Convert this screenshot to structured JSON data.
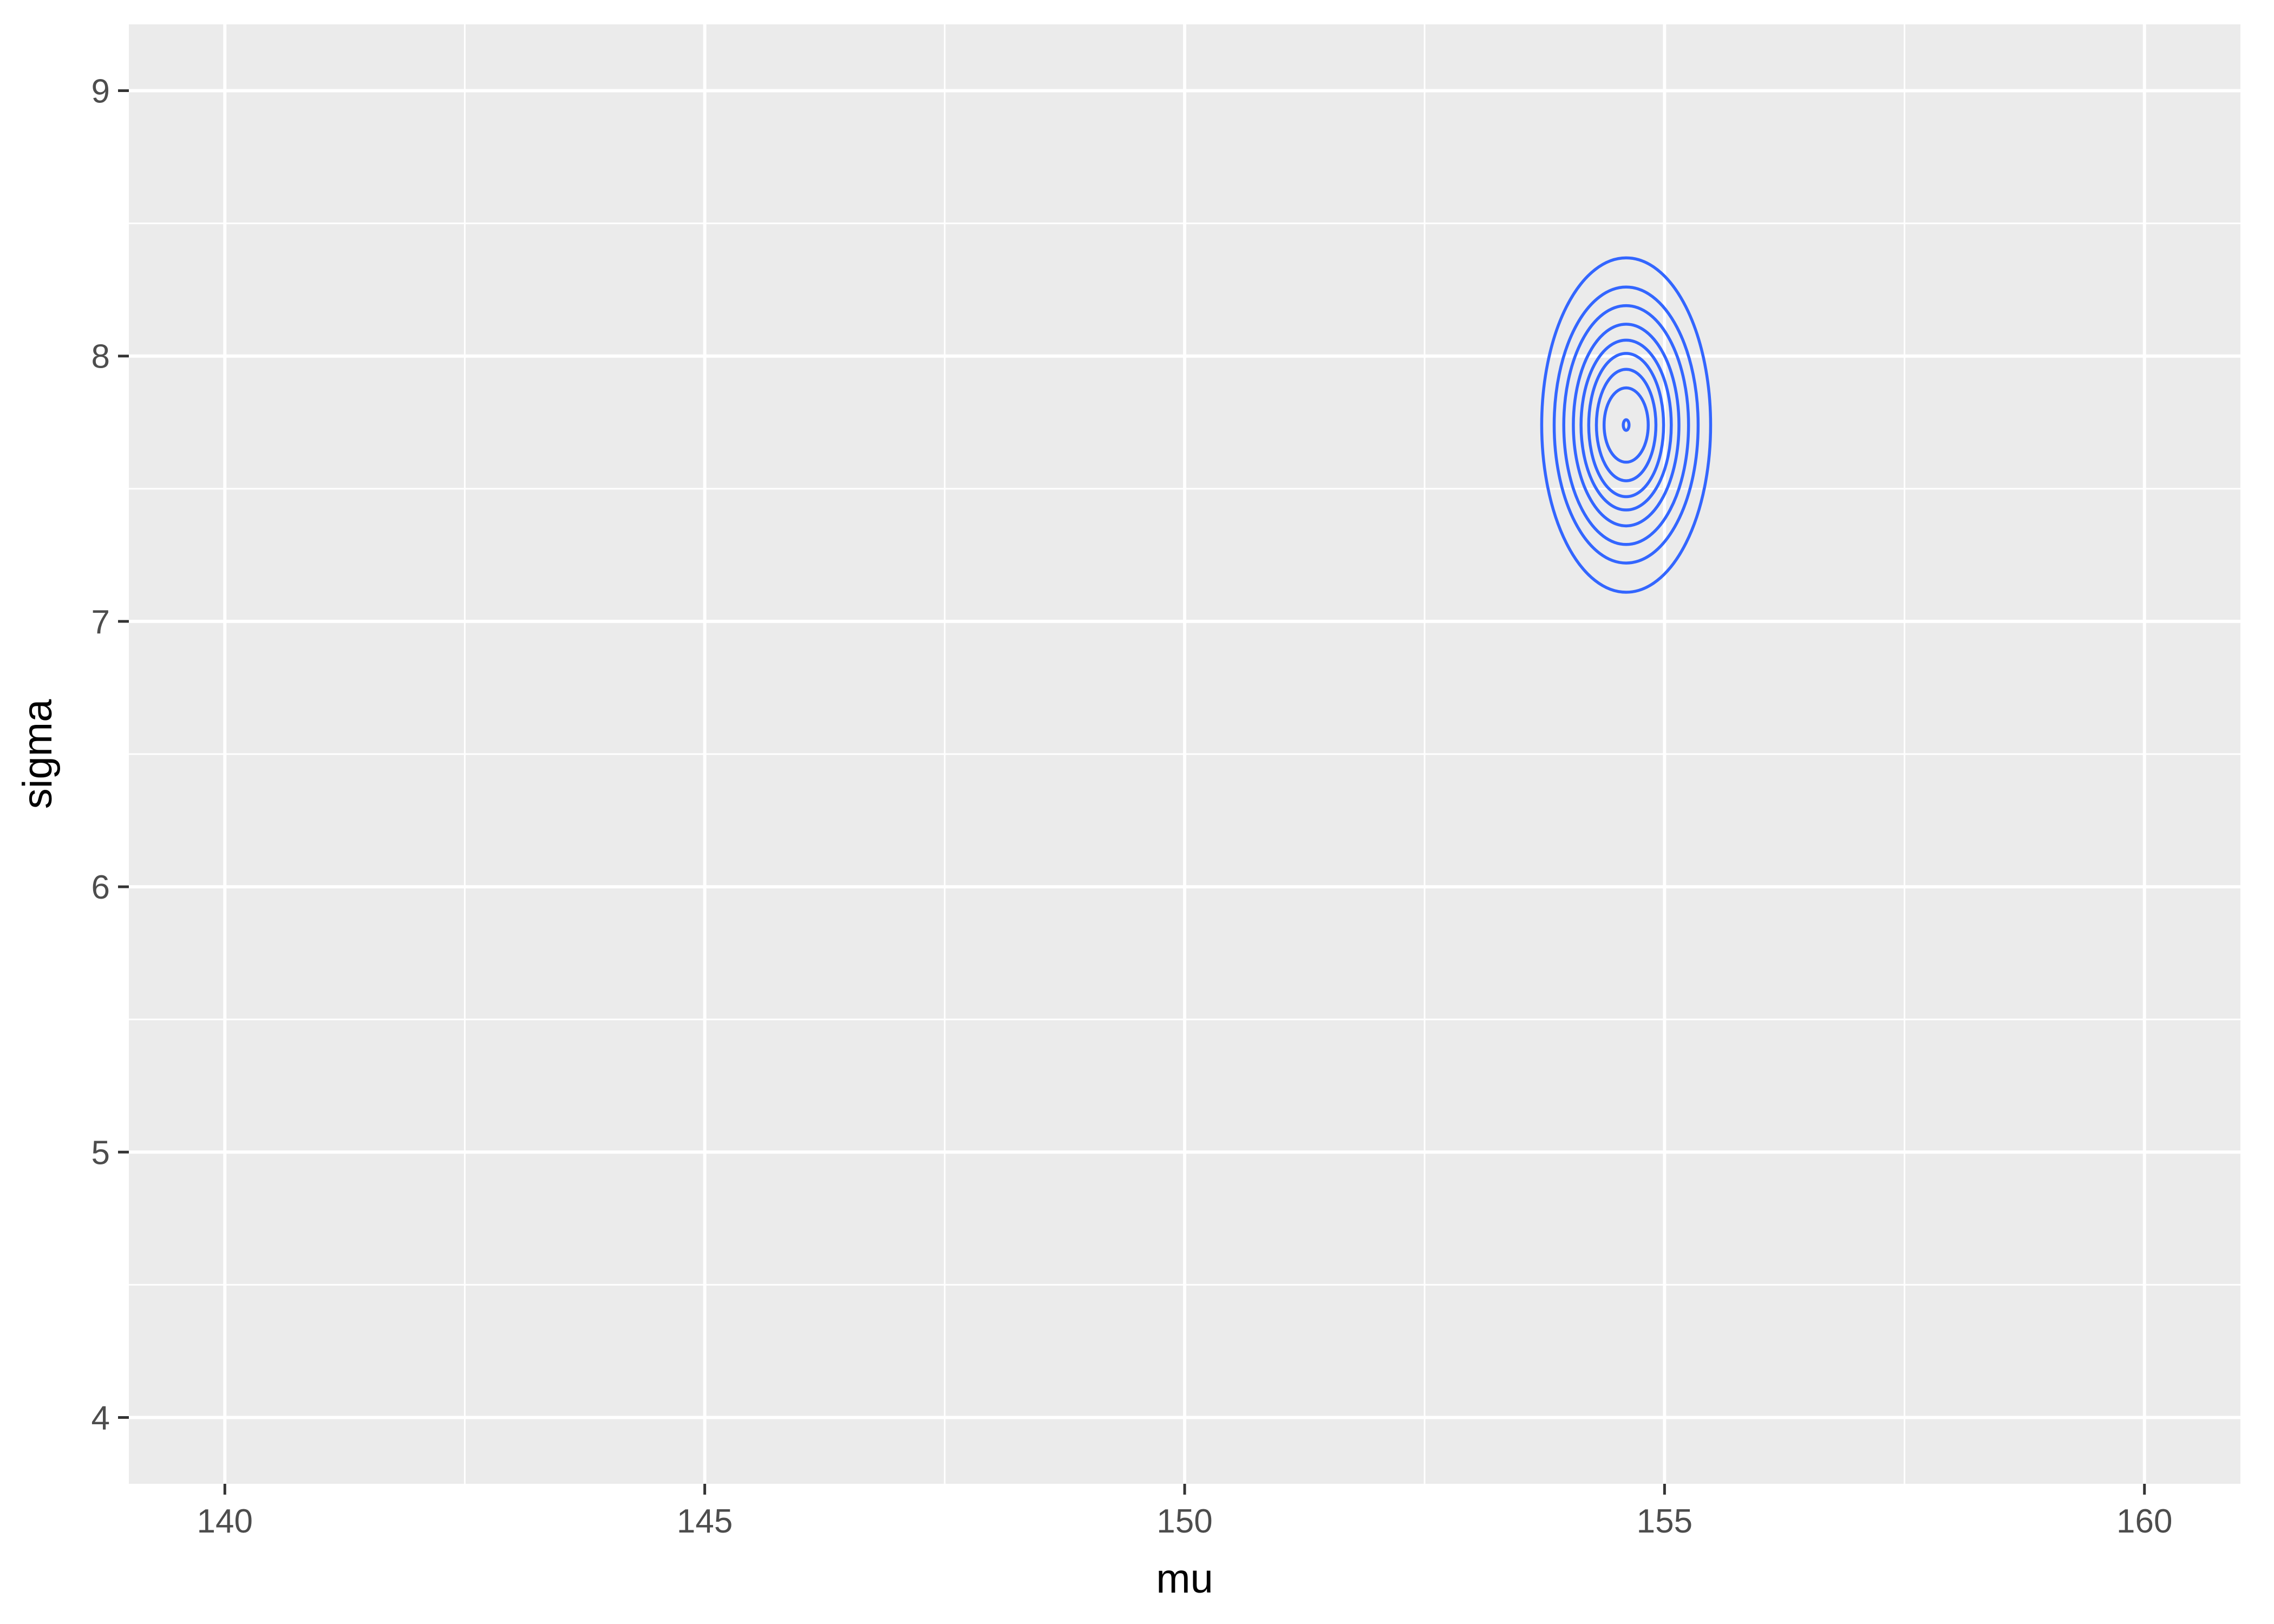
{
  "chart_data": {
    "type": "contour",
    "title": "",
    "xlabel": "mu",
    "ylabel": "sigma",
    "xlim": [
      139,
      161
    ],
    "ylim": [
      3.75,
      9.25
    ],
    "x_ticks": [
      140,
      145,
      150,
      155,
      160
    ],
    "x_tick_labels": [
      "140",
      "145",
      "150",
      "155",
      "160"
    ],
    "y_ticks": [
      4,
      5,
      6,
      7,
      8,
      9
    ],
    "y_tick_labels": [
      "4",
      "5",
      "6",
      "7",
      "8",
      "9"
    ],
    "x_minor": [
      142.5,
      147.5,
      152.5,
      157.5
    ],
    "y_minor": [
      4.5,
      5.5,
      6.5,
      7.5,
      8.5
    ],
    "grid": true,
    "background": "#ebebeb",
    "contour_color": "#3366ff",
    "contour_center": {
      "mu": 154.6,
      "sigma": 7.74
    },
    "contours": [
      {
        "mu_half_width": 0.88,
        "sigma_half_height": 0.63
      },
      {
        "mu_half_width": 0.75,
        "sigma_half_height": 0.52
      },
      {
        "mu_half_width": 0.65,
        "sigma_half_height": 0.45
      },
      {
        "mu_half_width": 0.55,
        "sigma_half_height": 0.38
      },
      {
        "mu_half_width": 0.47,
        "sigma_half_height": 0.32
      },
      {
        "mu_half_width": 0.39,
        "sigma_half_height": 0.27
      },
      {
        "mu_half_width": 0.31,
        "sigma_half_height": 0.21
      },
      {
        "mu_half_width": 0.23,
        "sigma_half_height": 0.14
      },
      {
        "mu_half_width": 0.03,
        "sigma_half_height": 0.02
      }
    ]
  }
}
